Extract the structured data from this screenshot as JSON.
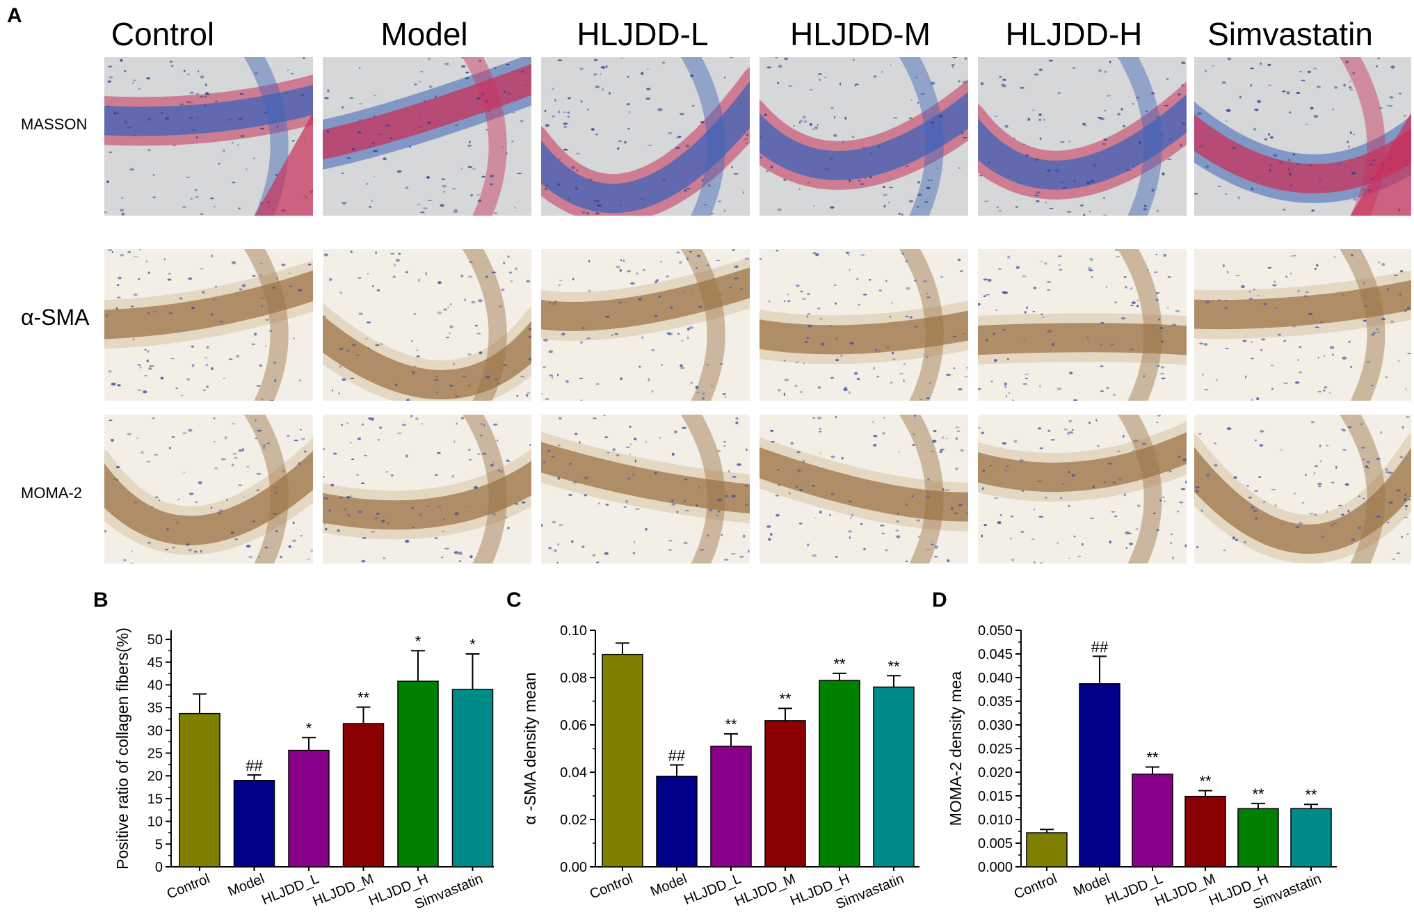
{
  "figure": {
    "panel_labels": {
      "A": "A",
      "B": "B",
      "C": "C",
      "D": "D"
    },
    "columns": [
      "Control",
      "Model",
      "HLJDD-L",
      "HLJDD-M",
      "HLJDD-H",
      "Simvastatin"
    ],
    "rows": [
      "MASSON",
      "α-SMA",
      "MOMA-2"
    ],
    "stain_colors": {
      "masson_background": "#d6d7d8",
      "masson_collagen_blue": "#3d63b8",
      "masson_muscle_red": "#c8315a",
      "ihc_background": "#f3efe6",
      "ihc_brown": "#9b7448",
      "ihc_nuclei_blue": "#3a4ea0"
    }
  },
  "chart_data": [
    {
      "type": "bar",
      "panel": "B",
      "categories": [
        "Control",
        "Model",
        "HLJDD_L",
        "HLJDD_M",
        "HLJDD_H",
        "Simvastatin"
      ],
      "values": [
        33.7,
        19.0,
        25.6,
        31.5,
        40.8,
        39.0
      ],
      "errors": [
        4.3,
        1.2,
        2.8,
        3.6,
        6.7,
        7.8
      ],
      "significance": [
        "",
        "##",
        "*",
        "**",
        "*",
        "*"
      ],
      "colors": [
        "#808000",
        "#00008b",
        "#8b008b",
        "#8b0000",
        "#008000",
        "#008b8b"
      ],
      "title": "",
      "xlabel": "",
      "ylabel": "Positive ratio of collagen fibers(%)",
      "ylim": [
        0,
        52
      ],
      "yticks": [
        "0",
        "5",
        "10",
        "15",
        "20",
        "25",
        "30",
        "35",
        "40",
        "45",
        "50"
      ],
      "ytick_values": [
        0,
        5,
        10,
        15,
        20,
        25,
        30,
        35,
        40,
        45,
        50
      ]
    },
    {
      "type": "bar",
      "panel": "C",
      "categories": [
        "Control",
        "Model",
        "HLJDD_L",
        "HLJDD_M",
        "HLJDD_H",
        "Simvastatin"
      ],
      "values": [
        0.0898,
        0.0383,
        0.051,
        0.0618,
        0.0788,
        0.076
      ],
      "errors": [
        0.0048,
        0.0048,
        0.0052,
        0.0052,
        0.003,
        0.0048
      ],
      "significance": [
        "",
        "##",
        "**",
        "**",
        "**",
        "**"
      ],
      "colors": [
        "#808000",
        "#00008b",
        "#8b008b",
        "#8b0000",
        "#008000",
        "#008b8b"
      ],
      "title": "",
      "xlabel": "",
      "ylabel": "α -SMA density mean",
      "ylim": [
        0,
        0.1
      ],
      "yticks": [
        "0.00",
        "0.02",
        "0.04",
        "0.06",
        "0.08",
        "0.10"
      ],
      "ytick_values": [
        0,
        0.02,
        0.04,
        0.06,
        0.08,
        0.1
      ]
    },
    {
      "type": "bar",
      "panel": "D",
      "categories": [
        "Control",
        "Model",
        "HLJDD_L",
        "HLJDD_M",
        "HLJDD_H",
        "Simvastatin"
      ],
      "values": [
        0.0072,
        0.0387,
        0.0196,
        0.0149,
        0.0123,
        0.0123
      ],
      "errors": [
        0.0007,
        0.0058,
        0.0015,
        0.0012,
        0.0011,
        0.0009
      ],
      "significance": [
        "",
        "##",
        "**",
        "**",
        "**",
        "**"
      ],
      "colors": [
        "#808000",
        "#00008b",
        "#8b008b",
        "#8b0000",
        "#008000",
        "#008b8b"
      ],
      "title": "",
      "xlabel": "",
      "ylabel": "MOMA-2  density mea",
      "ylim": [
        0,
        0.05
      ],
      "yticks": [
        "0.000",
        "0.005",
        "0.010",
        "0.015",
        "0.020",
        "0.025",
        "0.030",
        "0.035",
        "0.040",
        "0.045",
        "0.050"
      ],
      "ytick_values": [
        0,
        0.005,
        0.01,
        0.015,
        0.02,
        0.025,
        0.03,
        0.035,
        0.04,
        0.045,
        0.05
      ]
    }
  ]
}
